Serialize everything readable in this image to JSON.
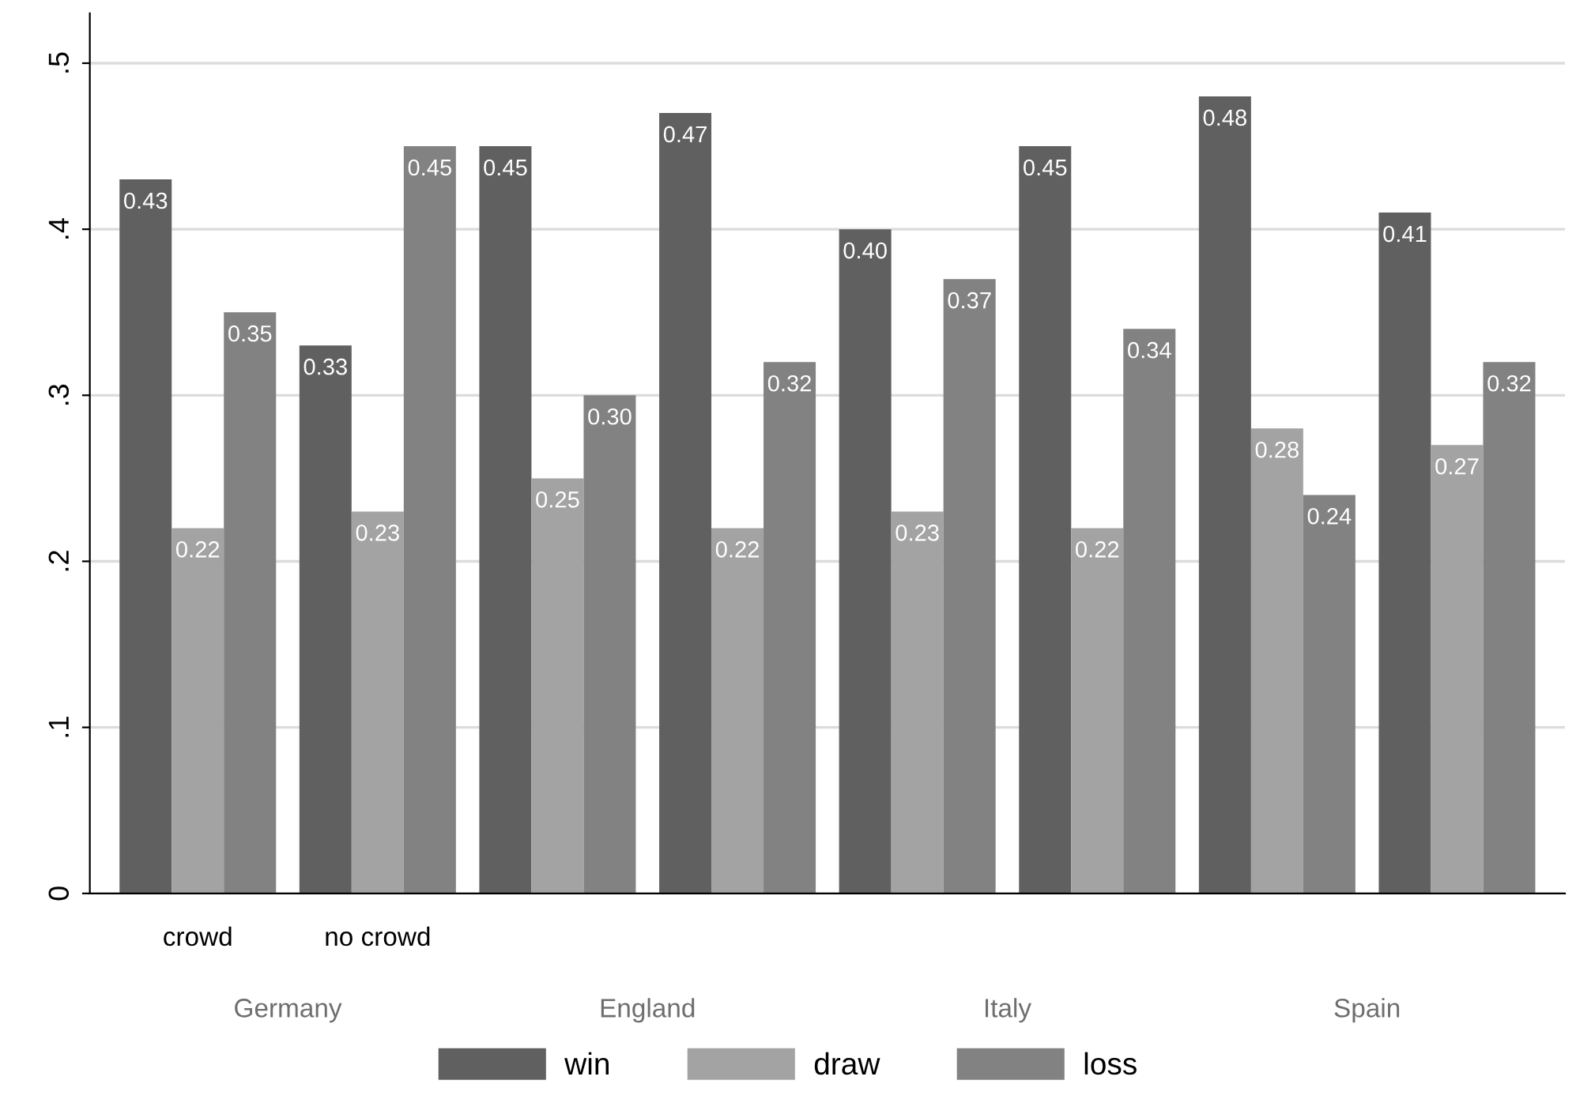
{
  "chart_data": {
    "type": "bar",
    "categories": [
      "crowd",
      "no crowd",
      null,
      null,
      null,
      null,
      null,
      null
    ],
    "series": [
      {
        "name": "win",
        "color": "#606060",
        "values": [
          0.43,
          0.33,
          0.45,
          0.47,
          0.4,
          0.45,
          0.48,
          0.41
        ],
        "value_labels": [
          "0.43",
          "0.33",
          "0.45",
          "0.47",
          "0.40",
          "0.45",
          "0.48",
          "0.41"
        ]
      },
      {
        "name": "draw",
        "color": "#a3a3a3",
        "values": [
          0.22,
          0.23,
          0.25,
          0.22,
          0.23,
          0.22,
          0.28,
          0.27
        ],
        "value_labels": [
          "0.22",
          "0.23",
          "0.25",
          "0.22",
          "0.23",
          "0.22",
          "0.28",
          "0.27"
        ]
      },
      {
        "name": "loss",
        "color": "#828282",
        "values": [
          0.35,
          0.45,
          0.3,
          0.32,
          0.37,
          0.34,
          0.24,
          0.32
        ],
        "value_labels": [
          "0.35",
          "0.45",
          "0.30",
          "0.32",
          "0.37",
          "0.34",
          "0.24",
          "0.32"
        ]
      }
    ],
    "annotations": [
      "Germany",
      "England",
      "Italy",
      "Spain"
    ],
    "ylim": [
      0,
      0.53
    ],
    "yticks": [
      0,
      {
        "value": 0.1,
        "label": ".1"
      },
      {
        "value": 0.2,
        "label": ".2"
      },
      {
        "value": 0.3,
        "label": ".3"
      },
      {
        "value": 0.4,
        "label": ".4"
      },
      {
        "value": 0.5,
        "label": ".5"
      }
    ],
    "grid": "y",
    "legend": "bottom"
  }
}
